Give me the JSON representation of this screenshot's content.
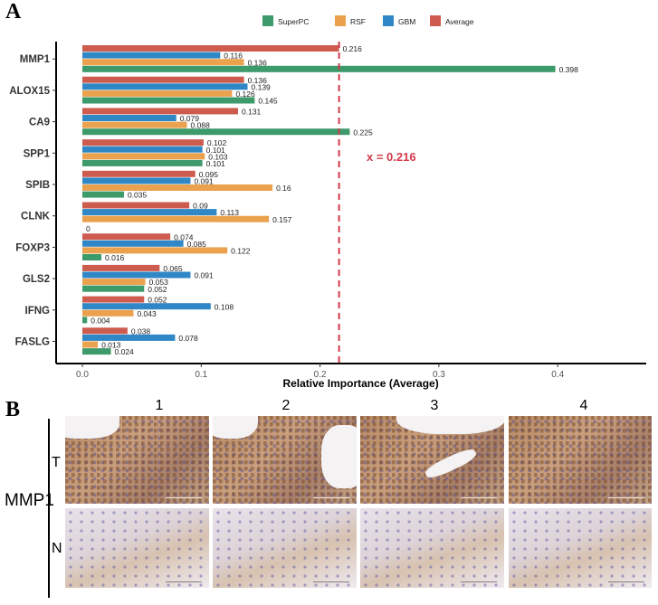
{
  "panel_labels": {
    "a": "A",
    "b": "B"
  },
  "chart_data": {
    "type": "bar",
    "orientation": "horizontal",
    "categories": [
      "MMP1",
      "ALOX15",
      "CA9",
      "SPP1",
      "SPIB",
      "CLNK",
      "FOXP3",
      "GLS2",
      "IFNG",
      "FASLG"
    ],
    "series": [
      {
        "name": "Average",
        "color": "#cd5c4f",
        "values": [
          0.216,
          0.136,
          0.131,
          0.102,
          0.095,
          0.09,
          0.074,
          0.065,
          0.052,
          0.038
        ]
      },
      {
        "name": "GBM",
        "color": "#2f87c5",
        "values": [
          0.116,
          0.139,
          0.079,
          0.101,
          0.091,
          0.113,
          0.085,
          0.091,
          0.108,
          0.078
        ]
      },
      {
        "name": "RSF",
        "color": "#eba24e",
        "values": [
          0.136,
          0.126,
          0.088,
          0.103,
          0.16,
          0.157,
          0.122,
          0.053,
          0.043,
          0.013
        ]
      },
      {
        "name": "SuperPC",
        "color": "#3d9a6a",
        "values": [
          0.398,
          0.145,
          0.225,
          0.101,
          0.035,
          0,
          0.016,
          0.052,
          0.004,
          0.024
        ]
      }
    ],
    "legend_order": [
      "SuperPC",
      "RSF",
      "GBM",
      "Average"
    ],
    "legend_position": "top",
    "xlabel": "Relative Importance (Average)",
    "ylabel": "",
    "xlim": [
      0,
      0.47
    ],
    "xticks": [
      "0.0",
      "0.1",
      "0.2",
      "0.3",
      "0.4"
    ],
    "reference_line": {
      "value": 0.216,
      "label": "x = 0.216",
      "color": "#d33a4b",
      "style": "dashed"
    },
    "grid": false
  },
  "panel_b": {
    "gene": "MMP1",
    "columns": [
      "1",
      "2",
      "3",
      "4"
    ],
    "rows": [
      "T",
      "N"
    ]
  }
}
